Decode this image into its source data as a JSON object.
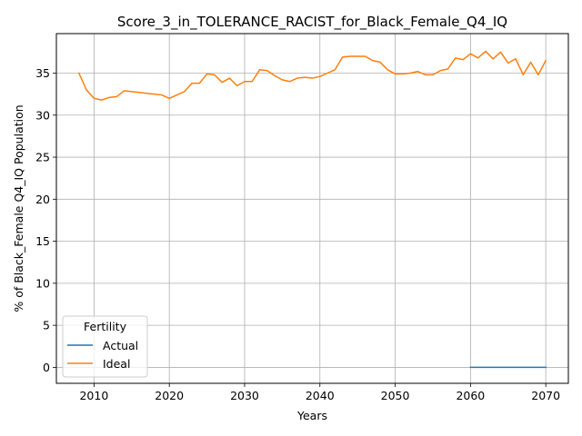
{
  "chart_data": {
    "type": "line",
    "title": "Score_3_in_TOLERANCE_RACIST_for_Black_Female_Q4_IQ",
    "xlabel": "Years",
    "ylabel": "% of Black_Female Q4_IQ Population",
    "xlim": [
      2005,
      2073
    ],
    "ylim": [
      -1.9,
      39.7
    ],
    "xticks": [
      2010,
      2020,
      2030,
      2040,
      2050,
      2060,
      2070
    ],
    "yticks": [
      0,
      5,
      10,
      15,
      20,
      25,
      30,
      35
    ],
    "grid": true,
    "legend": {
      "title": "Fertility",
      "position": "lower-left"
    },
    "series": [
      {
        "name": "Actual",
        "color": "#1f77b4",
        "x": [
          2060,
          2061,
          2062,
          2063,
          2064,
          2065,
          2066,
          2067,
          2068,
          2069,
          2070
        ],
        "y": [
          0,
          0,
          0,
          0,
          0,
          0,
          0,
          0,
          0,
          0,
          0
        ]
      },
      {
        "name": "Ideal",
        "color": "#ff7f0e",
        "x": [
          2008,
          2009,
          2010,
          2011,
          2012,
          2013,
          2014,
          2015,
          2016,
          2017,
          2018,
          2019,
          2020,
          2021,
          2022,
          2023,
          2024,
          2025,
          2026,
          2027,
          2028,
          2029,
          2030,
          2031,
          2032,
          2033,
          2034,
          2035,
          2036,
          2037,
          2038,
          2039,
          2040,
          2041,
          2042,
          2043,
          2044,
          2045,
          2046,
          2047,
          2048,
          2049,
          2050,
          2051,
          2052,
          2053,
          2054,
          2055,
          2056,
          2057,
          2058,
          2059,
          2060,
          2061,
          2062,
          2063,
          2064,
          2065,
          2066,
          2067,
          2068,
          2069,
          2070
        ],
        "y": [
          35.0,
          33.0,
          32.0,
          31.8,
          32.1,
          32.2,
          32.9,
          32.8,
          32.7,
          32.6,
          32.5,
          32.4,
          32.0,
          32.4,
          32.8,
          33.8,
          33.8,
          34.9,
          34.8,
          33.9,
          34.4,
          33.5,
          34.0,
          34.0,
          35.4,
          35.3,
          34.7,
          34.2,
          34.0,
          34.4,
          34.5,
          34.4,
          34.6,
          35.0,
          35.4,
          36.9,
          37.0,
          37.0,
          37.0,
          36.5,
          36.3,
          35.4,
          34.9,
          34.9,
          35.0,
          35.2,
          34.8,
          34.8,
          35.3,
          35.5,
          36.8,
          36.6,
          37.3,
          36.8,
          37.6,
          36.7,
          37.5,
          36.2,
          36.7,
          34.8,
          36.3,
          34.8,
          36.5
        ]
      }
    ]
  }
}
